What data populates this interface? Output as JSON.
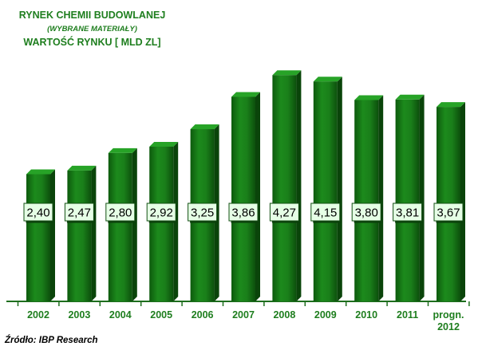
{
  "chart_data": {
    "type": "bar",
    "title": "RYNEK CHEMII BUDOWLANEJ",
    "subtitle": "(WYBRANE MATERIAŁY)",
    "ylabel": "WARTOŚĆ RYNKU [ MLD ZL]",
    "categories": [
      "2002",
      "2003",
      "2004",
      "2005",
      "2006",
      "2007",
      "2008",
      "2009",
      "2010",
      "2011",
      "progn. 2012"
    ],
    "values": [
      2.4,
      2.47,
      2.8,
      2.92,
      3.25,
      3.86,
      4.27,
      4.15,
      3.8,
      3.81,
      3.67
    ],
    "value_labels": [
      "2,40",
      "2,47",
      "2,80",
      "2,92",
      "3,25",
      "3,86",
      "4,27",
      "4,15",
      "3,80",
      "3,81",
      "3,67"
    ],
    "source": "Źródło:  IBP Research",
    "grid": false,
    "bar_color": "#1a7a1a",
    "label_fill": "#e6ffe6"
  }
}
